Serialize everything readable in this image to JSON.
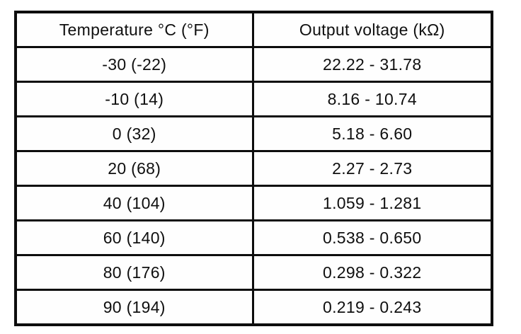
{
  "table": {
    "columns": [
      {
        "label": "Temperature °C (°F)"
      },
      {
        "label": "Output voltage (kΩ)"
      }
    ],
    "rows": [
      {
        "temperature": "-30 (-22)",
        "output_voltage": "22.22 - 31.78"
      },
      {
        "temperature": "-10 (14)",
        "output_voltage": "8.16 - 10.74"
      },
      {
        "temperature": "0 (32)",
        "output_voltage": "5.18 - 6.60"
      },
      {
        "temperature": "20 (68)",
        "output_voltage": "2.27 - 2.73"
      },
      {
        "temperature": "40 (104)",
        "output_voltage": "1.059 - 1.281"
      },
      {
        "temperature": "60 (140)",
        "output_voltage": "0.538 - 0.650"
      },
      {
        "temperature": "80 (176)",
        "output_voltage": "0.298 - 0.322"
      },
      {
        "temperature": "90 (194)",
        "output_voltage": "0.219 - 0.243"
      }
    ]
  }
}
